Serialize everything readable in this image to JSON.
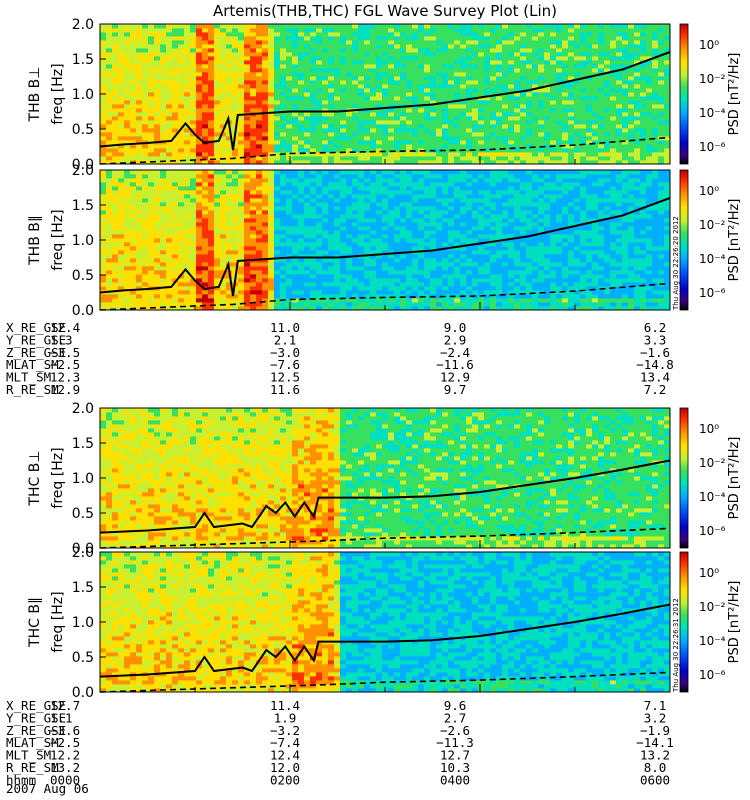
{
  "title": "Artemis(THB,THC) FGL Wave Survey Plot (Lin)",
  "colorbar": {
    "label": "PSD [nT²/Hz]",
    "ticks": [
      "10⁰",
      "10⁻²",
      "10⁻⁴",
      "10⁻⁶"
    ],
    "colors": [
      "#000000",
      "#3a007a",
      "#0000c8",
      "#0058ff",
      "#00b0ff",
      "#00e0c0",
      "#38e060",
      "#c8f030",
      "#ffe000",
      "#ff9000",
      "#ff3000",
      "#c00000"
    ]
  },
  "stamps": [
    "Thu Aug 30 22:26:20 2012",
    "Thu Aug 30 22:26:31 2012"
  ],
  "chart_data": [
    {
      "type": "heatmap",
      "ylabel_probe": "THB B⊥",
      "ylabel_unit": "freq [Hz]",
      "ylim": [
        0,
        2.0
      ],
      "yticks": [
        "0.0",
        "0.5",
        "1.0",
        "1.5",
        "2.0"
      ],
      "fce_line_hz": [
        [
          0,
          0.25
        ],
        [
          0.25,
          0.28
        ],
        [
          0.5,
          0.3
        ],
        [
          0.75,
          0.33
        ],
        [
          0.9,
          0.58
        ],
        [
          1.0,
          0.42
        ],
        [
          1.1,
          0.3
        ],
        [
          1.25,
          0.33
        ],
        [
          1.35,
          0.65
        ],
        [
          1.4,
          0.2
        ],
        [
          1.45,
          0.7
        ],
        [
          2.0,
          0.75
        ],
        [
          2.5,
          0.75
        ],
        [
          3.0,
          0.8
        ],
        [
          3.5,
          0.85
        ],
        [
          4.0,
          0.95
        ],
        [
          4.5,
          1.05
        ],
        [
          5.0,
          1.2
        ],
        [
          5.5,
          1.35
        ],
        [
          6.0,
          1.6
        ]
      ],
      "dashed_line_hz": [
        [
          0,
          0.0
        ],
        [
          1.4,
          0.08
        ],
        [
          2.0,
          0.15
        ],
        [
          3.0,
          0.18
        ],
        [
          4.0,
          0.2
        ],
        [
          5.0,
          0.27
        ],
        [
          6.0,
          0.38
        ]
      ]
    },
    {
      "type": "heatmap",
      "ylabel_probe": "THB B∥",
      "ylabel_unit": "freq [Hz]",
      "ylim": [
        0,
        2.0
      ],
      "yticks": [
        "0.0",
        "0.5",
        "1.0",
        "1.5",
        "2.0"
      ],
      "fce_line_hz": [
        [
          0,
          0.25
        ],
        [
          0.25,
          0.28
        ],
        [
          0.5,
          0.3
        ],
        [
          0.75,
          0.33
        ],
        [
          0.9,
          0.58
        ],
        [
          1.0,
          0.42
        ],
        [
          1.1,
          0.3
        ],
        [
          1.25,
          0.33
        ],
        [
          1.35,
          0.65
        ],
        [
          1.4,
          0.2
        ],
        [
          1.45,
          0.7
        ],
        [
          2.0,
          0.75
        ],
        [
          2.5,
          0.75
        ],
        [
          3.0,
          0.8
        ],
        [
          3.5,
          0.85
        ],
        [
          4.0,
          0.95
        ],
        [
          4.5,
          1.05
        ],
        [
          5.0,
          1.2
        ],
        [
          5.5,
          1.35
        ],
        [
          6.0,
          1.6
        ]
      ],
      "dashed_line_hz": [
        [
          0,
          0.0
        ],
        [
          1.4,
          0.08
        ],
        [
          2.0,
          0.15
        ],
        [
          3.0,
          0.18
        ],
        [
          4.0,
          0.2
        ],
        [
          5.0,
          0.27
        ],
        [
          6.0,
          0.38
        ]
      ]
    },
    {
      "type": "heatmap",
      "ylabel_probe": "THC B⊥",
      "ylabel_unit": "freq [Hz]",
      "ylim": [
        0,
        2.0
      ],
      "yticks": [
        "0.0",
        "0.5",
        "1.0",
        "1.5",
        "2.0"
      ],
      "fce_line_hz": [
        [
          0,
          0.22
        ],
        [
          0.5,
          0.25
        ],
        [
          1.0,
          0.3
        ],
        [
          1.1,
          0.5
        ],
        [
          1.2,
          0.3
        ],
        [
          1.5,
          0.35
        ],
        [
          1.6,
          0.3
        ],
        [
          1.75,
          0.6
        ],
        [
          1.85,
          0.5
        ],
        [
          1.95,
          0.65
        ],
        [
          2.05,
          0.45
        ],
        [
          2.15,
          0.65
        ],
        [
          2.25,
          0.45
        ],
        [
          2.3,
          0.72
        ],
        [
          3.0,
          0.72
        ],
        [
          3.5,
          0.74
        ],
        [
          4.0,
          0.8
        ],
        [
          4.5,
          0.9
        ],
        [
          5.0,
          1.0
        ],
        [
          5.5,
          1.12
        ],
        [
          6.0,
          1.25
        ]
      ],
      "dashed_line_hz": [
        [
          0,
          0.0
        ],
        [
          2.3,
          0.1
        ],
        [
          3.0,
          0.14
        ],
        [
          4.0,
          0.17
        ],
        [
          5.0,
          0.22
        ],
        [
          6.0,
          0.28
        ]
      ]
    },
    {
      "type": "heatmap",
      "ylabel_probe": "THC B∥",
      "ylabel_unit": "freq [Hz]",
      "ylim": [
        0,
        2.0
      ],
      "yticks": [
        "0.0",
        "0.5",
        "1.0",
        "1.5",
        "2.0"
      ],
      "fce_line_hz": [
        [
          0,
          0.22
        ],
        [
          0.5,
          0.25
        ],
        [
          1.0,
          0.3
        ],
        [
          1.1,
          0.5
        ],
        [
          1.2,
          0.3
        ],
        [
          1.5,
          0.35
        ],
        [
          1.6,
          0.3
        ],
        [
          1.75,
          0.6
        ],
        [
          1.85,
          0.5
        ],
        [
          1.95,
          0.65
        ],
        [
          2.05,
          0.45
        ],
        [
          2.15,
          0.65
        ],
        [
          2.25,
          0.45
        ],
        [
          2.3,
          0.72
        ],
        [
          3.0,
          0.72
        ],
        [
          3.5,
          0.74
        ],
        [
          4.0,
          0.8
        ],
        [
          4.5,
          0.9
        ],
        [
          5.0,
          1.0
        ],
        [
          5.5,
          1.12
        ],
        [
          6.0,
          1.25
        ]
      ],
      "dashed_line_hz": [
        [
          0,
          0.0
        ],
        [
          2.3,
          0.1
        ],
        [
          3.0,
          0.14
        ],
        [
          4.0,
          0.17
        ],
        [
          5.0,
          0.22
        ],
        [
          6.0,
          0.28
        ]
      ]
    }
  ],
  "orbit_tables": [
    {
      "rows": [
        {
          "label": "X_RE_GSE",
          "values": [
            "12.4",
            "11.0",
            "9.0",
            "6.2"
          ]
        },
        {
          "label": "Y_RE_GSE",
          "values": [
            "1.3",
            "2.1",
            "2.9",
            "3.3"
          ]
        },
        {
          "label": "Z_RE_GSE",
          "values": [
            "−3.5",
            "−3.0",
            "−2.4",
            "−1.6"
          ]
        },
        {
          "label": "MLAT_SM",
          "values": [
            "−2.5",
            "−7.6",
            "−11.6",
            "−14.8"
          ]
        },
        {
          "label": "MLT_SM",
          "values": [
            "12.3",
            "12.5",
            "12.9",
            "13.4"
          ]
        },
        {
          "label": "R_RE_SM",
          "values": [
            "12.9",
            "11.6",
            "9.7",
            "7.2"
          ]
        }
      ]
    },
    {
      "rows": [
        {
          "label": "X_RE_GSE",
          "values": [
            "12.7",
            "11.4",
            "9.6",
            "7.1"
          ]
        },
        {
          "label": "Y_RE_GSE",
          "values": [
            "1.1",
            "1.9",
            "2.7",
            "3.2"
          ]
        },
        {
          "label": "Z_RE_GSE",
          "values": [
            "−3.6",
            "−3.2",
            "−2.6",
            "−1.9"
          ]
        },
        {
          "label": "MLAT_SM",
          "values": [
            "−2.5",
            "−7.4",
            "−11.3",
            "−14.1"
          ]
        },
        {
          "label": "MLT_SM",
          "values": [
            "12.2",
            "12.4",
            "12.7",
            "13.2"
          ]
        },
        {
          "label": "R_RE_SM",
          "values": [
            "13.2",
            "12.0",
            "10.3",
            "8.0"
          ]
        },
        {
          "label": "hhmm",
          "values": [
            "0000",
            "0200",
            "0400",
            "0600"
          ]
        }
      ]
    }
  ],
  "date": "2007 Aug 06"
}
